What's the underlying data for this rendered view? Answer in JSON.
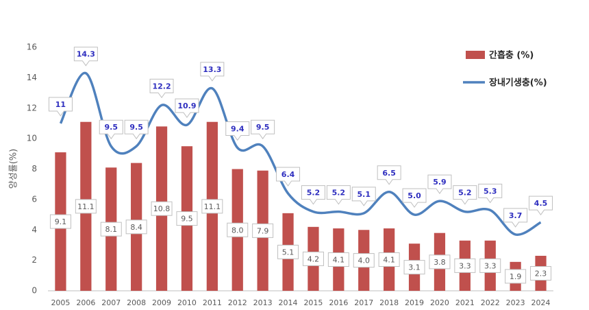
{
  "chart_data": {
    "type": "combo",
    "y_label": "양성률(%)",
    "categories": [
      "2005",
      "2006",
      "2007",
      "2008",
      "2009",
      "2010",
      "2011",
      "2012",
      "2013",
      "2014",
      "2015",
      "2016",
      "2017",
      "2018",
      "2019",
      "2020",
      "2021",
      "2022",
      "2023",
      "2024"
    ],
    "series": [
      {
        "name": "간흡충 (%)",
        "type": "bar",
        "color": "#c0504d",
        "values": [
          9.1,
          11.1,
          8.1,
          8.4,
          10.8,
          9.5,
          11.1,
          8.0,
          7.9,
          5.1,
          4.2,
          4.1,
          4.0,
          4.1,
          3.1,
          3.8,
          3.3,
          3.3,
          1.9,
          2.3
        ],
        "value_labels": [
          "9.1",
          "11.1",
          "8.1",
          "8.4",
          "10.8",
          "9.5",
          "11.1",
          "8.0",
          "7.9",
          "5.1",
          "4.2",
          "4.1",
          "4.0",
          "4.1",
          "3.1",
          "3.8",
          "3.3",
          "3.3",
          "1.9",
          "2.3"
        ]
      },
      {
        "name": "장내기생충(%)",
        "type": "line",
        "color": "#4f81bd",
        "values": [
          11,
          14.3,
          9.5,
          9.5,
          12.2,
          10.9,
          13.3,
          9.4,
          9.5,
          6.4,
          5.2,
          5.2,
          5.1,
          6.5,
          5.0,
          5.9,
          5.2,
          5.3,
          3.7,
          4.5
        ],
        "value_labels": [
          "11",
          "14.3",
          "9.5",
          "9.5",
          "12.2",
          "10.9",
          "13.3",
          "9.4",
          "9.5",
          "6.4",
          "5.2",
          "5.2",
          "5.1",
          "6.5",
          "5.0",
          "5.9",
          "5.2",
          "5.3",
          "3.7",
          "4.5"
        ]
      }
    ],
    "ylim": [
      0,
      16
    ],
    "yticks": [
      0,
      2,
      4,
      6,
      8,
      10,
      12,
      14,
      16
    ],
    "grid": false,
    "legend": "upper right"
  }
}
